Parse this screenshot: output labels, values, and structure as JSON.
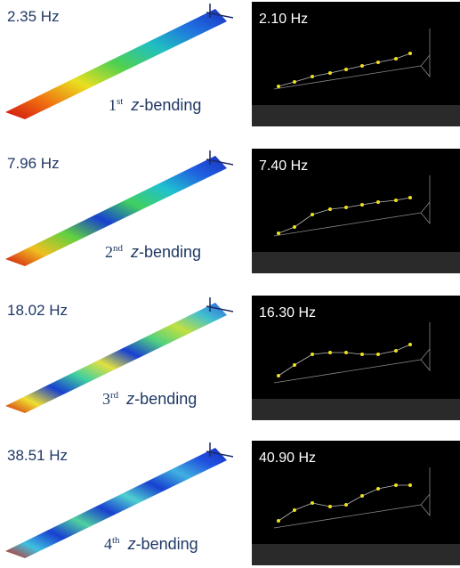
{
  "rows": [
    {
      "fem_frequency": "2.35 Hz",
      "mode_ordinal": "1",
      "mode_suffix": "st",
      "mode_axis": "z",
      "mode_rest": "-bending",
      "test_frequency": "2.10 Hz"
    },
    {
      "fem_frequency": "7.96 Hz",
      "mode_ordinal": "2",
      "mode_suffix": "nd",
      "mode_axis": "z",
      "mode_rest": "-bending",
      "test_frequency": "7.40 Hz"
    },
    {
      "fem_frequency": "18.02 Hz",
      "mode_ordinal": "3",
      "mode_suffix": "rd",
      "mode_axis": "z",
      "mode_rest": "-bending",
      "test_frequency": "16.30 Hz"
    },
    {
      "fem_frequency": "38.51 Hz",
      "mode_ordinal": "4",
      "mode_suffix": "th",
      "mode_axis": "z",
      "mode_rest": "-bending",
      "test_frequency": "40.90 Hz"
    }
  ]
}
